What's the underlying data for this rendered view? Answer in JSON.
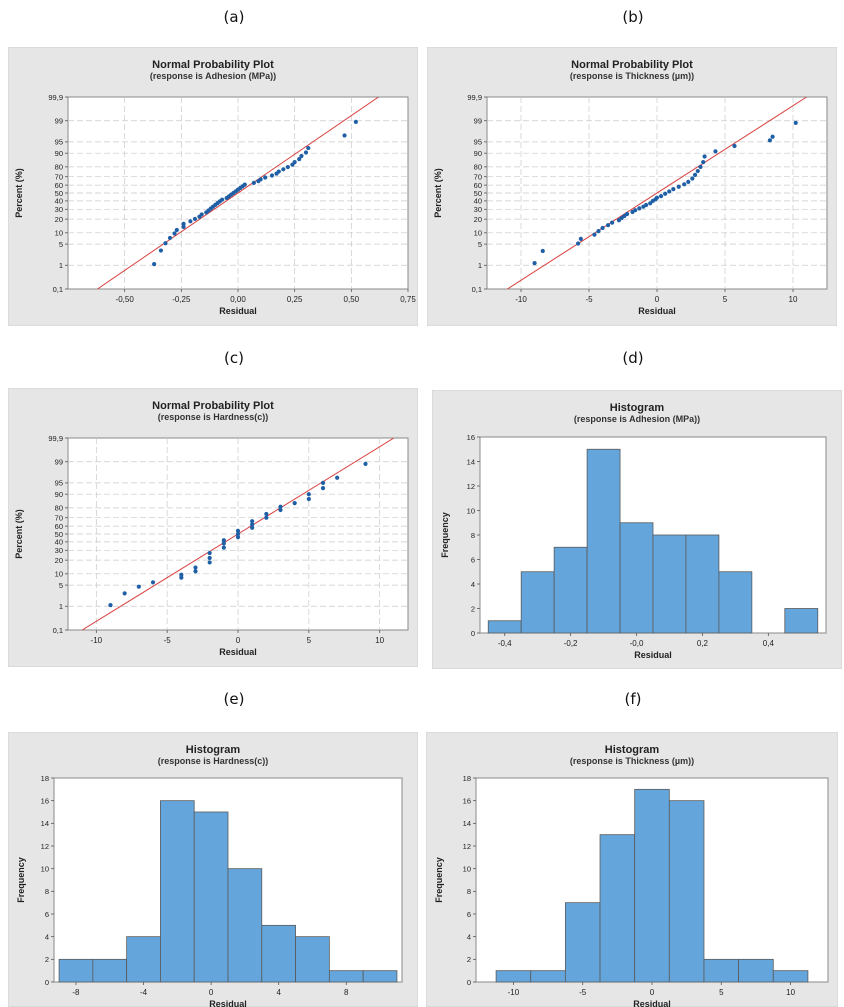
{
  "panel_labels": [
    "(a)",
    "(b)",
    "(c)",
    "(d)",
    "(e)",
    "(f)"
  ],
  "colors": {
    "figure_bg": "#e6e6e6",
    "plot_bg": "#ffffff",
    "point": "#1f5fa6",
    "fit_line": "#d94040",
    "bar_fill": "#64a6dc",
    "bar_edge": "#5a5a5a",
    "grid": "#c9c9c9"
  },
  "chart_data": [
    {
      "id": "a",
      "type": "scatter",
      "title": "Normal Probability Plot",
      "subtitle": "(response is Adhesion (MPa))",
      "xlabel": "Residual",
      "ylabel": "Percent (%)",
      "xlim": [
        -0.75,
        0.75
      ],
      "xticks": [
        -0.5,
        -0.25,
        0.0,
        0.25,
        0.5,
        0.75
      ],
      "xtick_labels": [
        "-0,50",
        "-0,25",
        "0,00",
        "0,25",
        "0,50",
        "0,75"
      ],
      "y_scale": "normal-probability",
      "ylim": [
        0.1,
        99.9
      ],
      "yticks": [
        0.1,
        1,
        5,
        10,
        20,
        30,
        40,
        50,
        60,
        70,
        80,
        90,
        95,
        99,
        99.9
      ],
      "ytick_labels": [
        "0,1",
        "1",
        "5",
        "10",
        "20",
        "30",
        "40",
        "50",
        "60",
        "70",
        "80",
        "90",
        "95",
        "99",
        "99,9"
      ],
      "fit_line": {
        "x": [
          -0.62,
          0.62
        ],
        "y": [
          0.1,
          99.9
        ]
      },
      "points": {
        "x": [
          -0.37,
          -0.34,
          -0.32,
          -0.3,
          -0.28,
          -0.27,
          -0.24,
          -0.24,
          -0.21,
          -0.19,
          -0.17,
          -0.16,
          -0.14,
          -0.13,
          -0.12,
          -0.11,
          -0.1,
          -0.09,
          -0.08,
          -0.07,
          -0.05,
          -0.04,
          -0.03,
          -0.02,
          -0.01,
          0.0,
          0.01,
          0.02,
          0.03,
          0.07,
          0.09,
          0.1,
          0.12,
          0.15,
          0.17,
          0.18,
          0.2,
          0.22,
          0.24,
          0.25,
          0.27,
          0.28,
          0.3,
          0.31,
          0.47,
          0.52
        ],
        "y": [
          1.1,
          3.2,
          5.3,
          7.4,
          9.6,
          11.7,
          13.8,
          16.0,
          18.1,
          20.2,
          22.3,
          24.5,
          26.6,
          28.7,
          30.9,
          33.0,
          35.1,
          37.2,
          39.4,
          41.5,
          43.6,
          45.7,
          47.9,
          50.0,
          52.1,
          54.3,
          56.4,
          58.5,
          60.6,
          62.8,
          64.9,
          67.0,
          69.1,
          71.3,
          73.4,
          75.5,
          77.7,
          79.8,
          81.9,
          84.0,
          86.2,
          88.3,
          90.4,
          92.6,
          96.8,
          98.9
        ]
      }
    },
    {
      "id": "b",
      "type": "scatter",
      "title": "Normal Probability Plot",
      "subtitle": "(response is Thickness (µm))",
      "xlabel": "Residual",
      "ylabel": "Percent (%)",
      "xlim": [
        -12.5,
        12.5
      ],
      "xticks": [
        -10,
        -5,
        0,
        5,
        10
      ],
      "xtick_labels": [
        "-10",
        "-5",
        "0",
        "5",
        "10"
      ],
      "y_scale": "normal-probability",
      "ylim": [
        0.1,
        99.9
      ],
      "yticks": [
        0.1,
        1,
        5,
        10,
        20,
        30,
        40,
        50,
        60,
        70,
        80,
        90,
        95,
        99,
        99.9
      ],
      "ytick_labels": [
        "0,1",
        "1",
        "5",
        "10",
        "20",
        "30",
        "40",
        "50",
        "60",
        "70",
        "80",
        "90",
        "95",
        "99",
        "99,9"
      ],
      "fit_line": {
        "x": [
          -11.0,
          11.0
        ],
        "y": [
          0.1,
          99.9
        ]
      },
      "points": {
        "x": [
          -9.0,
          -8.4,
          -5.8,
          -5.6,
          -4.6,
          -4.3,
          -4.0,
          -3.6,
          -3.3,
          -2.8,
          -2.6,
          -2.4,
          -2.2,
          -1.8,
          -1.6,
          -1.3,
          -1.0,
          -0.8,
          -0.5,
          -0.3,
          -0.1,
          0.0,
          0.3,
          0.6,
          0.9,
          1.2,
          1.6,
          2.0,
          2.3,
          2.6,
          2.8,
          3.0,
          3.2,
          3.4,
          3.5,
          4.3,
          5.7,
          8.3,
          8.5,
          10.2
        ],
        "y": [
          1.2,
          3.1,
          5.2,
          7.0,
          9.0,
          11.0,
          13.0,
          15.0,
          17.0,
          19.0,
          21.0,
          23.0,
          25.0,
          27.0,
          29.0,
          31.0,
          33.0,
          35.0,
          37.0,
          40.0,
          42.0,
          44.0,
          46.0,
          49.0,
          52.0,
          55.0,
          58.0,
          61.0,
          64.0,
          68.0,
          72.0,
          76.0,
          80.0,
          84.0,
          88.0,
          91.0,
          93.5,
          95.5,
          96.5,
          98.8
        ]
      }
    },
    {
      "id": "c",
      "type": "scatter",
      "title": "Normal Probability Plot",
      "subtitle": "(response is Hardness(c))",
      "xlabel": "Residual",
      "ylabel": "Percent (%)",
      "xlim": [
        -12,
        12
      ],
      "xticks": [
        -10,
        -5,
        0,
        5,
        10
      ],
      "xtick_labels": [
        "-10",
        "-5",
        "0",
        "5",
        "10"
      ],
      "y_scale": "normal-probability",
      "ylim": [
        0.1,
        99.9
      ],
      "yticks": [
        0.1,
        1,
        5,
        10,
        20,
        30,
        40,
        50,
        60,
        70,
        80,
        90,
        95,
        99,
        99.9
      ],
      "ytick_labels": [
        "0,1",
        "1",
        "5",
        "10",
        "20",
        "30",
        "40",
        "50",
        "60",
        "70",
        "80",
        "90",
        "95",
        "99",
        "99,9"
      ],
      "fit_line": {
        "x": [
          -11.0,
          11.0
        ],
        "y": [
          0.1,
          99.9
        ]
      },
      "points": {
        "x": [
          -9.0,
          -8.0,
          -7.0,
          -6.0,
          -4.0,
          -4.0,
          -3.0,
          -3.0,
          -2.0,
          -2.0,
          -2.0,
          -1.0,
          -1.0,
          -1.0,
          0.0,
          0.0,
          0.0,
          1.0,
          1.0,
          1.0,
          2.0,
          2.0,
          3.0,
          3.0,
          4.0,
          5.0,
          5.0,
          6.0,
          6.0,
          7.0,
          9.0
        ],
        "y": [
          1.1,
          2.8,
          4.5,
          6.0,
          8.0,
          9.5,
          11.5,
          14.0,
          18.0,
          22.0,
          27.0,
          33.0,
          38.0,
          42.0,
          46.0,
          50.0,
          54.0,
          58.0,
          62.0,
          66.0,
          70.0,
          74.0,
          78.0,
          81.0,
          84.0,
          87.0,
          90.0,
          93.0,
          95.0,
          96.5,
          98.8
        ]
      }
    },
    {
      "id": "d",
      "type": "bar",
      "title": "Histogram",
      "subtitle": "(response is Adhesion (MPa))",
      "xlabel": "Residual",
      "ylabel": "Frequency",
      "xlim": [
        -0.475,
        0.575
      ],
      "ylim": [
        0,
        16
      ],
      "xticks": [
        -0.4,
        -0.2,
        0.0,
        0.2,
        0.4
      ],
      "xtick_labels": [
        "-0,4",
        "-0,2",
        "-0,0",
        "0,2",
        "0,4"
      ],
      "yticks": [
        0,
        2,
        4,
        6,
        8,
        10,
        12,
        14,
        16
      ],
      "bin_width": 0.1,
      "bin_centers": [
        -0.4,
        -0.3,
        -0.2,
        -0.1,
        0.0,
        0.1,
        0.2,
        0.3,
        0.4,
        0.5
      ],
      "values": [
        1,
        5,
        7,
        15,
        9,
        8,
        8,
        5,
        0,
        2
      ]
    },
    {
      "id": "e",
      "type": "bar",
      "title": "Histogram",
      "subtitle": "(response is Hardness(c))",
      "xlabel": "Residual",
      "ylabel": "Frequency",
      "xlim": [
        -9.3,
        11.3
      ],
      "ylim": [
        0,
        18
      ],
      "xticks": [
        -8,
        -4,
        0,
        4,
        8
      ],
      "xtick_labels": [
        "-8",
        "-4",
        "0",
        "4",
        "8"
      ],
      "yticks": [
        0,
        2,
        4,
        6,
        8,
        10,
        12,
        14,
        16,
        18
      ],
      "bin_width": 2,
      "bin_centers": [
        -8,
        -6,
        -4,
        -2,
        0,
        2,
        4,
        6,
        8,
        10
      ],
      "values": [
        2,
        2,
        4,
        16,
        15,
        10,
        5,
        4,
        1,
        1
      ]
    },
    {
      "id": "f",
      "type": "bar",
      "title": "Histogram",
      "subtitle": "(response is Thickness (µm))",
      "xlabel": "Residual",
      "ylabel": "Frequency",
      "xlim": [
        -12.7,
        12.7
      ],
      "ylim": [
        0,
        18
      ],
      "xticks": [
        -10,
        -5,
        0,
        5,
        10
      ],
      "xtick_labels": [
        "-10",
        "-5",
        "0",
        "5",
        "10"
      ],
      "yticks": [
        0,
        2,
        4,
        6,
        8,
        10,
        12,
        14,
        16,
        18
      ],
      "bin_width": 2.5,
      "bin_centers": [
        -10,
        -7.5,
        -5,
        -2.5,
        0,
        2.5,
        5,
        7.5,
        10
      ],
      "values": [
        1,
        1,
        7,
        13,
        17,
        16,
        2,
        2,
        1
      ]
    }
  ]
}
